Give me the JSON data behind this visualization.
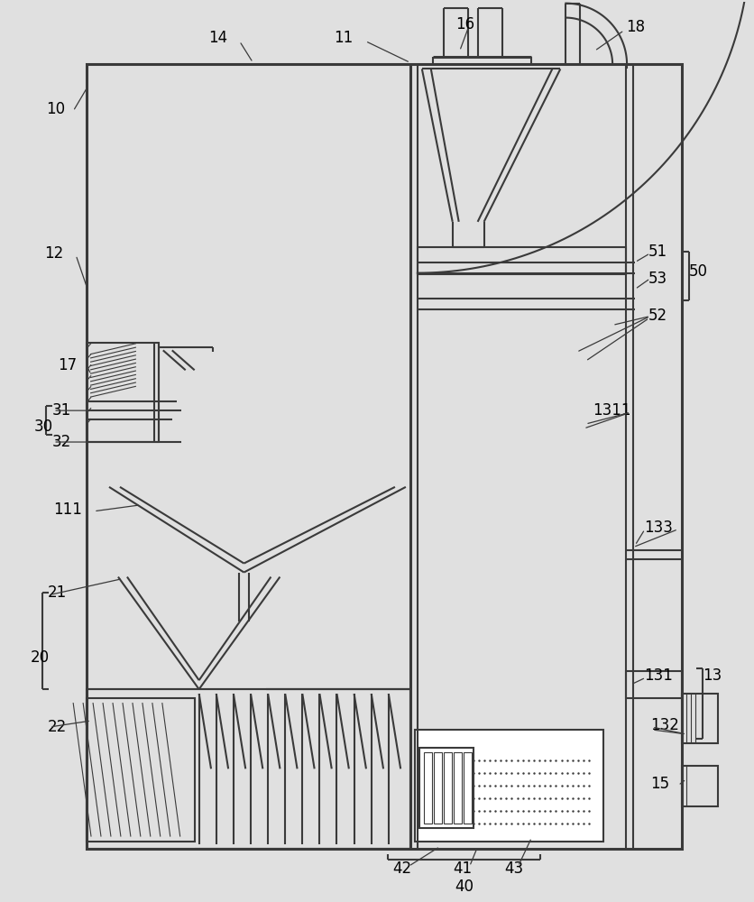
{
  "bg_color": "#e0e0e0",
  "line_color": "#3a3a3a",
  "lw": 1.5,
  "tlw": 2.2,
  "fs": 12,
  "fig_w": 8.37,
  "fig_h": 10.0,
  "dpi": 100
}
